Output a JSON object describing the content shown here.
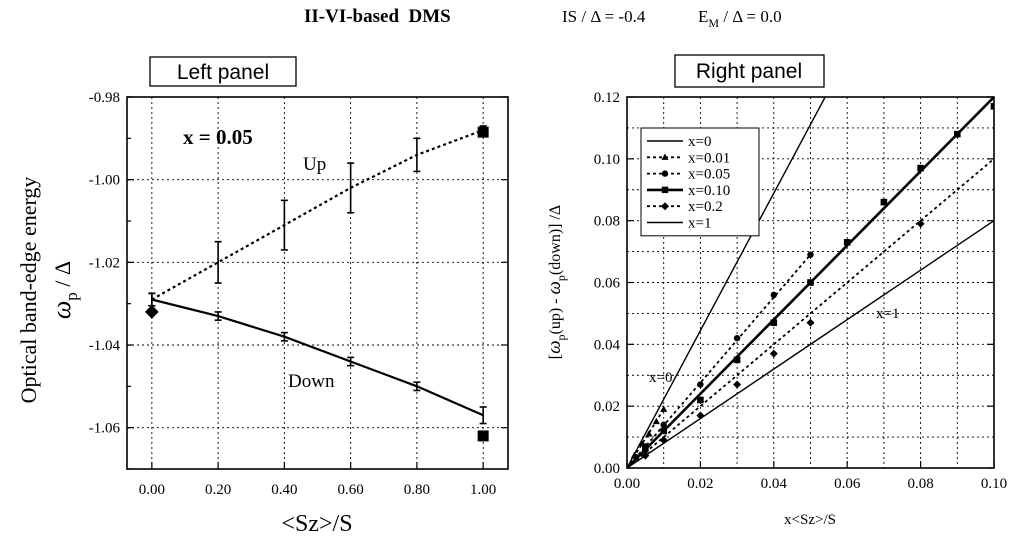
{
  "header": {
    "title": "II-VI-based  DMS",
    "params_is": "IS / Δ = -0.4",
    "params_em_prefix": "E",
    "params_em_sub": "M",
    "params_em_suffix": " / Δ = 0.0"
  },
  "chart_data": [
    {
      "type": "line",
      "panel_label": "Left panel",
      "xlabel": "<Sz>/S",
      "ylabel": "Optical band-edge energy",
      "ylabel_sym": "ω",
      "ylabel_sub": "p",
      "ylabel_suffix": " / Δ",
      "xlim": [
        -0.075,
        1.075
      ],
      "ylim": [
        -1.07,
        -0.98
      ],
      "xticks": [
        0.0,
        0.2,
        0.4,
        0.6,
        0.8,
        1.0
      ],
      "xtick_labels": [
        "0.00",
        "0.20",
        "0.40",
        "0.60",
        "0.80",
        "1.00"
      ],
      "yticks": [
        -0.98,
        -1.0,
        -1.02,
        -1.04,
        -1.06
      ],
      "ytick_labels": [
        "-0.98",
        "-1.00",
        "-1.02",
        "-1.04",
        "-1.06"
      ],
      "annotation": "x = 0.05",
      "series": [
        {
          "name": "Up",
          "style": "dotted",
          "x": [
            0.0,
            0.2,
            0.4,
            0.6,
            0.8,
            1.0
          ],
          "y": [
            -1.029,
            -1.02,
            -1.011,
            -1.002,
            -0.994,
            -0.988
          ],
          "err": [
            0.0015,
            0.005,
            0.006,
            0.006,
            0.004,
            0.001
          ]
        },
        {
          "name": "Down",
          "style": "solid",
          "x": [
            0.0,
            0.2,
            0.4,
            0.6,
            0.8,
            1.0
          ],
          "y": [
            -1.029,
            -1.033,
            -1.038,
            -1.044,
            -1.05,
            -1.057
          ],
          "err": [
            0.0015,
            0.001,
            0.001,
            0.001,
            0.001,
            0.002
          ]
        }
      ],
      "markers": [
        {
          "name": "square-up",
          "shape": "square",
          "x": 1.0,
          "y": -0.9885
        },
        {
          "name": "square-down",
          "shape": "square",
          "x": 1.0,
          "y": -1.062
        },
        {
          "name": "diamond-zero",
          "shape": "diamond",
          "x": 0.0,
          "y": -1.032
        }
      ]
    },
    {
      "type": "line",
      "panel_label": "Right panel",
      "xlabel": "x<Sz>/S",
      "ylabel_left": "[",
      "ylabel_w1": "ω",
      "ylabel_p1": "p",
      "ylabel_up": "(up) - ",
      "ylabel_w2": "ω",
      "ylabel_p2": "p",
      "ylabel_down": "(down)] /Δ",
      "xlim": [
        0.0,
        0.1
      ],
      "ylim": [
        0.0,
        0.12
      ],
      "xticks": [
        0.0,
        0.02,
        0.04,
        0.06,
        0.08,
        0.1
      ],
      "xtick_labels": [
        "0.00",
        "0.02",
        "0.04",
        "0.06",
        "0.08",
        "0.10"
      ],
      "yticks": [
        0.0,
        0.02,
        0.04,
        0.06,
        0.08,
        0.1,
        0.12
      ],
      "ytick_labels": [
        "0.00",
        "0.02",
        "0.04",
        "0.06",
        "0.08",
        "0.10",
        "0.12"
      ],
      "legend_position": "top-left",
      "line_labels": [
        "x=0",
        "x=1"
      ],
      "series": [
        {
          "name": "x=0",
          "style": "solid-thin",
          "marker": "none",
          "line": {
            "x": [
              0.0,
              0.054
            ],
            "y": [
              0.0,
              0.12
            ]
          },
          "points": []
        },
        {
          "name": "x=0.01",
          "style": "dotted",
          "marker": "triangle",
          "line": {
            "x": [
              0.0,
              0.01
            ],
            "y": [
              0.0,
              0.019
            ]
          },
          "points": [
            [
              0.002,
              0.004
            ],
            [
              0.004,
              0.008
            ],
            [
              0.006,
              0.011
            ],
            [
              0.008,
              0.015
            ],
            [
              0.01,
              0.019
            ]
          ]
        },
        {
          "name": "x=0.05",
          "style": "dotted",
          "marker": "circle",
          "line": {
            "x": [
              0.0,
              0.05
            ],
            "y": [
              0.0,
              0.069
            ]
          },
          "points": [
            [
              0.0025,
              0.0035
            ],
            [
              0.005,
              0.007
            ],
            [
              0.01,
              0.014
            ],
            [
              0.02,
              0.027
            ],
            [
              0.03,
              0.042
            ],
            [
              0.04,
              0.056
            ],
            [
              0.05,
              0.069
            ]
          ]
        },
        {
          "name": "x=0.10",
          "style": "solid-thick",
          "marker": "square",
          "line": {
            "x": [
              0.0,
              0.1
            ],
            "y": [
              0.0,
              0.12
            ]
          },
          "points": [
            [
              0.005,
              0.006
            ],
            [
              0.01,
              0.012
            ],
            [
              0.02,
              0.022
            ],
            [
              0.03,
              0.035
            ],
            [
              0.04,
              0.047
            ],
            [
              0.05,
              0.06
            ],
            [
              0.06,
              0.073
            ],
            [
              0.07,
              0.086
            ],
            [
              0.08,
              0.097
            ],
            [
              0.09,
              0.108
            ],
            [
              0.1,
              0.117
            ]
          ]
        },
        {
          "name": "x=0.2",
          "style": "dotted",
          "marker": "diamond",
          "line": {
            "x": [
              0.0,
              0.1
            ],
            "y": [
              0.0,
              0.1
            ]
          },
          "points": [
            [
              0.005,
              0.004
            ],
            [
              0.01,
              0.009
            ],
            [
              0.02,
              0.017
            ],
            [
              0.03,
              0.027
            ],
            [
              0.04,
              0.037
            ],
            [
              0.05,
              0.047
            ],
            [
              0.08,
              0.079
            ]
          ]
        },
        {
          "name": "x=1",
          "style": "solid-thin",
          "marker": "none",
          "line": {
            "x": [
              0.0,
              0.1
            ],
            "y": [
              0.0,
              0.08
            ]
          },
          "points": []
        }
      ]
    }
  ]
}
